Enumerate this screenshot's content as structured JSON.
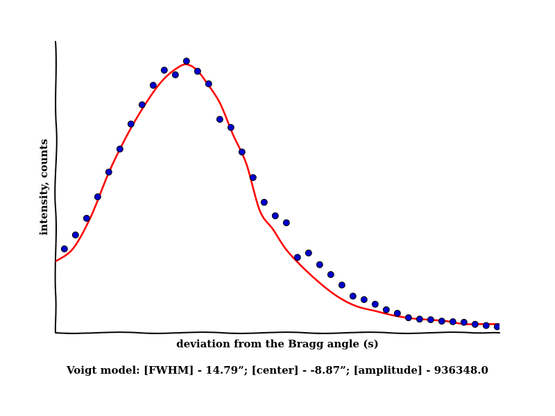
{
  "chart_data": {
    "type": "scatter",
    "xlabel": "deviation from the Bragg angle (s)",
    "ylabel": "intensity, counts",
    "caption": "Voigt model:   [FWHM] - 14.79”; [center] - -8.87”; [amplitude] - 936348.0",
    "xlim": [
      -50,
      50
    ],
    "ylim": [
      0,
      100
    ],
    "grid": false,
    "ticks": false,
    "series": [
      {
        "kind": "markers",
        "color": "#0000cc",
        "x": [
          -48,
          -45.5,
          -43,
          -40.5,
          -38,
          -35.5,
          -33,
          -30.5,
          -28,
          -25.5,
          -23,
          -20.5,
          -18,
          -15.5,
          -13,
          -10.5,
          -8,
          -5.5,
          -3,
          -0.5,
          2,
          4.5,
          7,
          9.5,
          12,
          14.5,
          17,
          19.5,
          22,
          24.5,
          27,
          29.5,
          32,
          34.5,
          37,
          39.5,
          42,
          44.5,
          47,
          49.5,
          52
        ],
        "y": [
          28.8,
          33.6,
          39.3,
          46.7,
          55.2,
          63.1,
          71.7,
          78.3,
          85.0,
          90.2,
          88.6,
          93.3,
          89.8,
          85.5,
          73.3,
          70.5,
          62.1,
          53.3,
          44.8,
          40.2,
          37.8,
          25.9,
          27.4,
          23.4,
          20.0,
          16.4,
          12.6,
          11.4,
          9.8,
          7.9,
          6.7,
          5.2,
          4.7,
          4.5,
          4.0,
          3.8,
          3.6,
          2.9,
          2.5,
          2.1,
          1.6
        ]
      },
      {
        "kind": "fit-line",
        "color": "#ff0000",
        "x": [
          -50,
          -46,
          -42,
          -38,
          -34,
          -30,
          -26,
          -22,
          -20,
          -18,
          -16,
          -13,
          -10,
          -7,
          -4,
          -1,
          2,
          6,
          10,
          14,
          18,
          22,
          26,
          30,
          34,
          38,
          42,
          46,
          50
        ],
        "y": [
          24.5,
          29.0,
          40.0,
          55.0,
          67.5,
          78.0,
          86.5,
          91.5,
          92.0,
          90.0,
          86.0,
          79.0,
          68.0,
          58.0,
          42.0,
          35.5,
          28.5,
          22.0,
          16.5,
          12.0,
          9.0,
          7.5,
          6.0,
          5.0,
          4.5,
          4.0,
          3.0,
          3.0,
          3.0
        ]
      }
    ]
  }
}
